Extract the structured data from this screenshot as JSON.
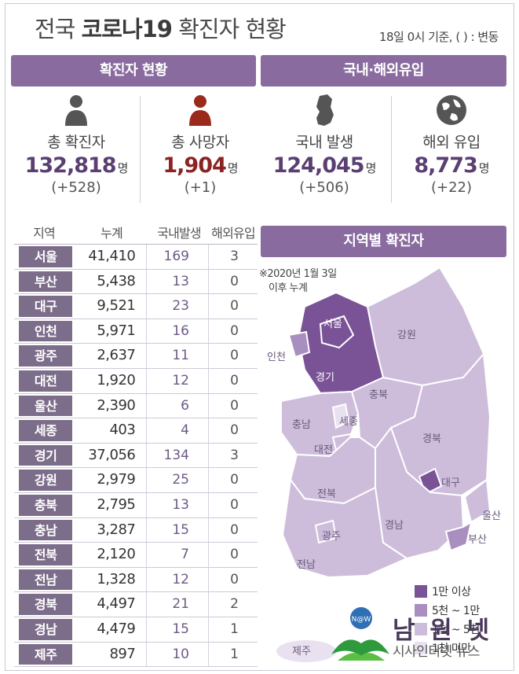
{
  "header": {
    "title_plain": "전국 ",
    "title_bold": "코로나19",
    "title_rest": " 확진자 현황",
    "basis": "18일  0시 기준, ( ) : 변동"
  },
  "sections": {
    "status": "확진자 현황",
    "origin": "국내·해외유입",
    "map": "지역별 확진자"
  },
  "stats": [
    {
      "label": "총 확진자",
      "value": "132,818",
      "unit": "명",
      "change": "(+528)",
      "icon": "person-icon"
    },
    {
      "label": "총 사망자",
      "value": "1,904",
      "unit": "명",
      "change": "(+1)",
      "icon": "person-icon"
    },
    {
      "label": "국내 발생",
      "value": "124,045",
      "unit": "명",
      "change": "(+506)",
      "icon": "korea-map-icon"
    },
    {
      "label": "해외 유입",
      "value": "8,773",
      "unit": "명",
      "change": "(+22)",
      "icon": "globe-icon"
    }
  ],
  "table": {
    "headers": [
      "지역",
      "누계",
      "국내발생",
      "해외유입"
    ],
    "rows": [
      {
        "region": "서울",
        "total": "41,410",
        "domestic": "169",
        "overseas": "3"
      },
      {
        "region": "부산",
        "total": "5,438",
        "domestic": "13",
        "overseas": "0"
      },
      {
        "region": "대구",
        "total": "9,521",
        "domestic": "23",
        "overseas": "0"
      },
      {
        "region": "인천",
        "total": "5,971",
        "domestic": "16",
        "overseas": "0"
      },
      {
        "region": "광주",
        "total": "2,637",
        "domestic": "11",
        "overseas": "0"
      },
      {
        "region": "대전",
        "total": "1,920",
        "domestic": "12",
        "overseas": "0"
      },
      {
        "region": "울산",
        "total": "2,390",
        "domestic": "6",
        "overseas": "0"
      },
      {
        "region": "세종",
        "total": "403",
        "domestic": "4",
        "overseas": "0"
      },
      {
        "region": "경기",
        "total": "37,056",
        "domestic": "134",
        "overseas": "3"
      },
      {
        "region": "강원",
        "total": "2,979",
        "domestic": "25",
        "overseas": "0"
      },
      {
        "region": "충북",
        "total": "2,795",
        "domestic": "13",
        "overseas": "0"
      },
      {
        "region": "충남",
        "total": "3,287",
        "domestic": "15",
        "overseas": "0"
      },
      {
        "region": "전북",
        "total": "2,120",
        "domestic": "7",
        "overseas": "0"
      },
      {
        "region": "전남",
        "total": "1,328",
        "domestic": "12",
        "overseas": "0"
      },
      {
        "region": "경북",
        "total": "4,497",
        "domestic": "21",
        "overseas": "2"
      },
      {
        "region": "경남",
        "total": "4,479",
        "domestic": "15",
        "overseas": "1"
      },
      {
        "region": "제주",
        "total": "897",
        "domestic": "10",
        "overseas": "1"
      }
    ]
  },
  "map": {
    "note_line1": "※2020년 1월 3일",
    "note_line2": "이후 누계",
    "labels": {
      "seoul": "서울",
      "incheon": "인천",
      "gyeonggi": "경기",
      "gangwon": "강원",
      "chungbuk": "충북",
      "sejong": "세종",
      "chungnam": "충남",
      "daejeon": "대전",
      "gyeongbuk": "경북",
      "daegu": "대구",
      "ulsan": "울산",
      "jeonbuk": "전북",
      "gyeongnam": "경남",
      "busan": "부산",
      "gwangju": "광주",
      "jeonnam": "전남",
      "jeju": "제주"
    },
    "legend": [
      {
        "label": "1만 이상",
        "color": "#7a5296"
      },
      {
        "label": "5천 ~ 1만",
        "color": "#a98fc0"
      },
      {
        "label": "1천 ~ 5천",
        "color": "#cdbddb"
      },
      {
        "label": "1천 미만",
        "color": "#e9e1f0"
      }
    ]
  },
  "colors": {
    "accent": "#8a6b9f",
    "region_badge": "#7c6e8a",
    "value_purple": "#5b3f72",
    "value_red": "#8c2323"
  },
  "logo": {
    "name": "남 원 넷",
    "sub": "시사인터넷 뉴스",
    "badge": "N@W"
  }
}
